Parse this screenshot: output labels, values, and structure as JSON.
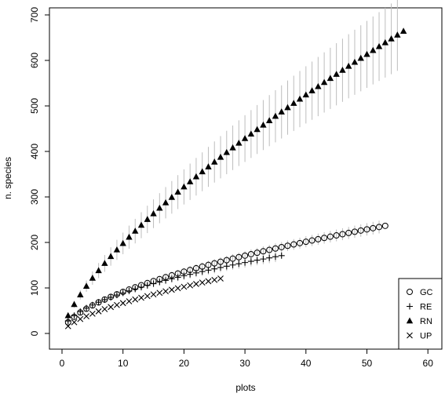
{
  "chart_data": {
    "type": "scatter",
    "title": "",
    "xlabel": "plots",
    "ylabel": "n. species",
    "xlim": [
      -3,
      60
    ],
    "ylim": [
      -10,
      710
    ],
    "xticks": [
      0,
      10,
      20,
      30,
      40,
      50,
      60
    ],
    "yticks": [
      0,
      100,
      200,
      300,
      400,
      500,
      600,
      700
    ],
    "grid": false,
    "legend_position": "bottom-right",
    "series": [
      {
        "name": "GC",
        "marker": "circle",
        "n": 53,
        "a": 24.6,
        "b": 0.57,
        "sd_frac": 0.06
      },
      {
        "name": "RE",
        "marker": "plus",
        "n": 36,
        "a": 27.5,
        "b": 0.51,
        "sd_frac": 0.07
      },
      {
        "name": "RN",
        "marker": "triangle",
        "n": 56,
        "a": 39.2,
        "b": 0.703,
        "sd_frac": 0.12
      },
      {
        "name": "UP",
        "marker": "cross",
        "n": 26,
        "a": 16.0,
        "b": 0.62,
        "sd_frac": 0.0
      }
    ],
    "colors": {
      "points": "#000000",
      "error_bars": "#bdbdbd"
    }
  }
}
